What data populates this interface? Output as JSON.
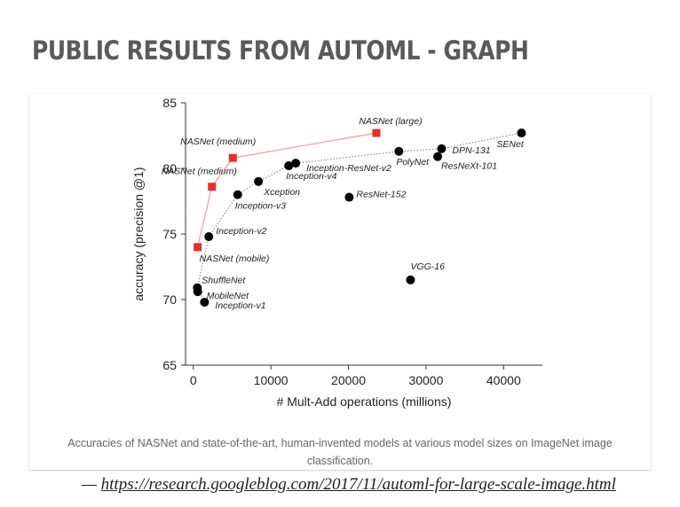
{
  "slide": {
    "title": "PUBLIC RESULTS FROM AUTOML - GRAPH",
    "caption": "Accuracies of NASNet and state-of-the-art, human-invented models at various model sizes on ImageNet image classification.",
    "source_dash": "—",
    "source_url": "https://research.googleblog.com/2017/11/automl-for-large-scale-image.html"
  },
  "colors": {
    "nasnet": "#e8302a",
    "nasnet_line": "#f3a9a6",
    "human": "#000000",
    "human_line": "#888888",
    "axis": "#333333"
  },
  "chart_data": {
    "type": "scatter",
    "title": "",
    "xlabel": "# Mult-Add operations (millions)",
    "ylabel": "accuracy (precision @1)",
    "xlim": [
      -1000,
      45000
    ],
    "ylim": [
      65,
      85
    ],
    "xticks": [
      0,
      10000,
      20000,
      30000,
      40000
    ],
    "yticks": [
      65,
      70,
      75,
      80,
      85
    ],
    "grid": false,
    "legend": "none",
    "series": [
      {
        "key": "nasnet",
        "marker": "square",
        "connected": true,
        "points": [
          {
            "label": "NASNet (mobile)",
            "x": 560,
            "y": 74.0
          },
          {
            "label": "NASNet (medium)",
            "x": 2400,
            "y": 78.6
          },
          {
            "label": "NASNet (medium)",
            "x": 5100,
            "y": 80.8
          },
          {
            "label": "NASNet (large)",
            "x": 23600,
            "y": 82.7
          }
        ]
      },
      {
        "key": "human",
        "marker": "circle",
        "frontier": true,
        "points": [
          {
            "label": "ShuffleNet",
            "x": 520,
            "y": 70.9
          },
          {
            "label": "MobileNet",
            "x": 570,
            "y": 70.6
          },
          {
            "label": "Inception-v1",
            "x": 1450,
            "y": 69.8
          },
          {
            "label": "Inception-v2",
            "x": 2000,
            "y": 74.8
          },
          {
            "label": "Inception-v3",
            "x": 5720,
            "y": 78.0
          },
          {
            "label": "Xception",
            "x": 8400,
            "y": 79.0
          },
          {
            "label": "Inception-v4",
            "x": 12300,
            "y": 80.2
          },
          {
            "label": "Inception-ResNet-v2",
            "x": 13200,
            "y": 80.4
          },
          {
            "label": "ResNet-152",
            "x": 20100,
            "y": 77.8
          },
          {
            "label": "VGG-16",
            "x": 28000,
            "y": 71.5
          },
          {
            "label": "PolyNet",
            "x": 26500,
            "y": 81.3
          },
          {
            "label": "ResNeXt-101",
            "x": 31500,
            "y": 80.9
          },
          {
            "label": "DPN-131",
            "x": 32000,
            "y": 81.5
          },
          {
            "label": "SENet",
            "x": 42300,
            "y": 82.7
          }
        ]
      }
    ]
  }
}
